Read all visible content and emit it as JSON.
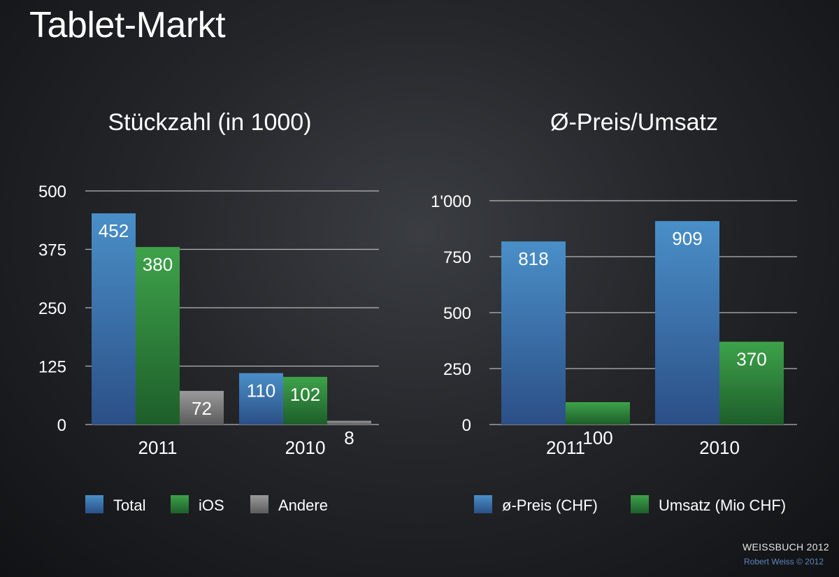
{
  "page": {
    "title": "Tablet-Markt",
    "brand": "WEISSBUCH 2012",
    "copyright": "Robert Weiss © 2012"
  },
  "chart_data": [
    {
      "type": "bar",
      "title": "Stückzahl (in 1000)",
      "categories": [
        "2011",
        "2010"
      ],
      "series": [
        {
          "name": "Total",
          "values": [
            452,
            110
          ],
          "value_labels": [
            "452",
            "110"
          ],
          "color": "#3a6fa8"
        },
        {
          "name": "iOS",
          "values": [
            380,
            102
          ],
          "value_labels": [
            "380",
            "102"
          ],
          "color": "#2e8a3c"
        },
        {
          "name": "Andere",
          "values": [
            72,
            8
          ],
          "value_labels": [
            "72",
            "8"
          ],
          "color": "#777777"
        }
      ],
      "yticks": [
        0,
        125,
        250,
        375,
        500
      ],
      "ytick_labels": [
        "0",
        "125",
        "250",
        "375",
        "500"
      ],
      "ylim": [
        0,
        500
      ],
      "grid": true,
      "legend": "bottom"
    },
    {
      "type": "bar",
      "title": "Ø-Preis/Umsatz",
      "categories": [
        "2011",
        "2010"
      ],
      "series": [
        {
          "name": "ø-Preis (CHF)",
          "values": [
            818,
            909
          ],
          "value_labels": [
            "818",
            "909"
          ],
          "color": "#3a6fa8"
        },
        {
          "name": "Umsatz (Mio CHF)",
          "values": [
            100,
            370
          ],
          "value_labels": [
            "100",
            "370"
          ],
          "color": "#2e8a3c"
        }
      ],
      "yticks": [
        0,
        250,
        500,
        750,
        1000
      ],
      "ytick_labels": [
        "0",
        "250",
        "500",
        "750",
        "1'000"
      ],
      "ylim": [
        0,
        1000
      ],
      "grid": true,
      "legend": "bottom"
    }
  ]
}
